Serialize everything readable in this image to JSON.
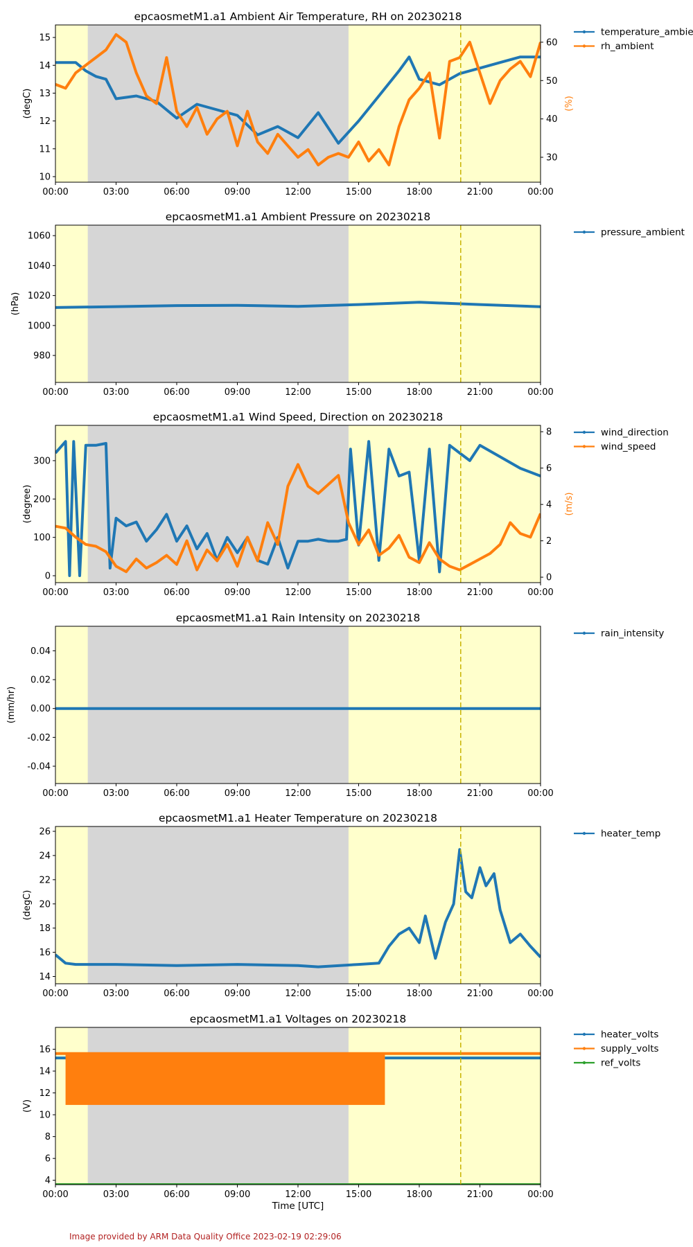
{
  "figure": {
    "xlabel": "Time [UTC]",
    "footer": "Image provided by ARM Data Quality Office 2023-02-19 02:29:06",
    "x_ticks": [
      "00:00",
      "03:00",
      "06:00",
      "09:00",
      "12:00",
      "15:00",
      "18:00",
      "21:00",
      "00:00"
    ],
    "colors": {
      "blue": "#1f77b4",
      "orange": "#ff7f0e",
      "green": "#2ca02c",
      "night": "#d6d6d6",
      "day": "#ffffcc",
      "marker": "#c8b400"
    }
  },
  "chart_data": [
    {
      "type": "line",
      "title": "epcaosmetM1.a1 Ambient Air Temperature, RH on 20230218",
      "ylabel": "(degC)",
      "ylim": [
        9.8,
        15.45
      ],
      "yticks": [
        10,
        11,
        12,
        13,
        14,
        15
      ],
      "ylabel2": "(%)",
      "ylim2": [
        23.5,
        64.5
      ],
      "yticks2": [
        30,
        40,
        50,
        60
      ],
      "legend": [
        "temperature_ambient",
        "rh_ambient"
      ],
      "series": [
        {
          "name": "temperature_ambient",
          "axis": "left",
          "color": "#1f77b4",
          "x": [
            0,
            1,
            1.5,
            2,
            2.5,
            3,
            4,
            5,
            6,
            7,
            8,
            9,
            10,
            11,
            12,
            13,
            14,
            15,
            16,
            17,
            17.5,
            18,
            19,
            20,
            21,
            22,
            23,
            24
          ],
          "y": [
            14.1,
            14.1,
            13.8,
            13.6,
            13.5,
            12.8,
            12.9,
            12.7,
            12.1,
            12.6,
            12.4,
            12.2,
            11.5,
            11.8,
            11.4,
            12.3,
            11.2,
            12.0,
            12.9,
            13.8,
            14.3,
            13.5,
            13.3,
            13.7,
            13.9,
            14.1,
            14.3,
            14.3
          ]
        },
        {
          "name": "rh_ambient",
          "axis": "right",
          "color": "#ff7f0e",
          "x": [
            0,
            0.5,
            1,
            1.5,
            2,
            2.5,
            3,
            3.5,
            4,
            4.5,
            5,
            5.5,
            6,
            6.5,
            7,
            7.5,
            8,
            8.5,
            9,
            9.5,
            10,
            10.5,
            11,
            11.5,
            12,
            12.5,
            13,
            13.5,
            14,
            14.5,
            15,
            15.5,
            16,
            16.5,
            17,
            17.5,
            18,
            18.5,
            19,
            19.5,
            20,
            20.5,
            21,
            21.5,
            22,
            22.5,
            23,
            23.5,
            24
          ],
          "y": [
            49,
            48,
            52,
            54,
            56,
            58,
            62,
            60,
            52,
            46,
            44,
            56,
            42,
            38,
            43,
            36,
            40,
            42,
            33,
            42,
            34,
            31,
            36,
            33,
            30,
            32,
            28,
            30,
            31,
            30,
            34,
            29,
            32,
            28,
            38,
            45,
            48,
            52,
            35,
            55,
            56,
            60,
            52,
            44,
            50,
            53,
            55,
            51,
            60
          ]
        }
      ]
    },
    {
      "type": "line",
      "title": "epcaosmetM1.a1 Ambient Pressure on 20230218",
      "ylabel": "(hPa)",
      "ylim": [
        962,
        1067
      ],
      "yticks": [
        980,
        1000,
        1020,
        1040,
        1060
      ],
      "legend": [
        "pressure_ambient"
      ],
      "series": [
        {
          "name": "pressure_ambient",
          "axis": "left",
          "color": "#1f77b4",
          "x": [
            0,
            3,
            6,
            9,
            12,
            15,
            18,
            21,
            24
          ],
          "y": [
            1012,
            1012.6,
            1013.3,
            1013.5,
            1012.8,
            1014,
            1015.5,
            1014,
            1012.5
          ]
        }
      ]
    },
    {
      "type": "line",
      "title": "epcaosmetM1.a1 Wind Speed, Direction on 20230218",
      "ylabel": "(degree)",
      "ylim": [
        -18,
        392
      ],
      "yticks": [
        0,
        100,
        200,
        300
      ],
      "ylabel2": "(m/s)",
      "ylim2": [
        -0.3,
        8.35
      ],
      "yticks2": [
        0,
        2,
        4,
        6,
        8
      ],
      "legend": [
        "wind_direction",
        "wind_speed"
      ],
      "series": [
        {
          "name": "wind_direction",
          "axis": "left",
          "color": "#1f77b4",
          "x": [
            0,
            0.5,
            0.7,
            0.9,
            1.2,
            1.5,
            2,
            2.5,
            2.7,
            3,
            3.5,
            4,
            4.5,
            5,
            5.5,
            6,
            6.5,
            7,
            7.5,
            8,
            8.5,
            9,
            9.5,
            10,
            10.5,
            11,
            11.5,
            12,
            12.5,
            13,
            13.5,
            14,
            14.4,
            14.6,
            15,
            15.5,
            16,
            16.5,
            17,
            17.5,
            18,
            18.5,
            19,
            19.5,
            20,
            20.5,
            21,
            22,
            23,
            24
          ],
          "y": [
            320,
            350,
            0,
            350,
            0,
            340,
            340,
            345,
            20,
            150,
            130,
            140,
            90,
            120,
            160,
            90,
            130,
            70,
            110,
            40,
            100,
            60,
            100,
            40,
            30,
            100,
            20,
            90,
            90,
            95,
            90,
            90,
            95,
            330,
            80,
            350,
            40,
            330,
            260,
            270,
            40,
            330,
            10,
            340,
            320,
            300,
            340,
            310,
            280,
            260
          ]
        },
        {
          "name": "wind_speed",
          "axis": "right",
          "color": "#ff7f0e",
          "x": [
            0,
            0.5,
            1,
            1.5,
            2,
            2.5,
            3,
            3.5,
            4,
            4.5,
            5,
            5.5,
            6,
            6.5,
            7,
            7.5,
            8,
            8.5,
            9,
            9.5,
            10,
            10.5,
            11,
            11.5,
            12,
            12.5,
            13,
            13.5,
            14,
            14.5,
            15,
            15.5,
            16,
            16.5,
            17,
            17.5,
            18,
            18.5,
            19,
            19.5,
            20,
            20.5,
            21,
            21.5,
            22,
            22.5,
            23,
            23.5,
            24
          ],
          "y": [
            2.8,
            2.7,
            2.2,
            1.8,
            1.7,
            1.4,
            0.6,
            0.3,
            1.0,
            0.5,
            0.8,
            1.2,
            0.7,
            2.0,
            0.4,
            1.5,
            0.9,
            1.8,
            0.6,
            2.2,
            0.9,
            3.0,
            1.8,
            5.0,
            6.2,
            5.0,
            4.6,
            5.1,
            5.6,
            3.0,
            1.8,
            2.6,
            1.2,
            1.6,
            2.3,
            1.1,
            0.8,
            1.9,
            1.0,
            0.6,
            0.4,
            0.7,
            1.0,
            1.3,
            1.8,
            3.0,
            2.4,
            2.2,
            3.5
          ]
        }
      ]
    },
    {
      "type": "line",
      "title": "epcaosmetM1.a1 Rain Intensity on 20230218",
      "ylabel": "(mm/hr)",
      "ylim": [
        -0.052,
        0.057
      ],
      "yticks": [
        -0.04,
        -0.02,
        0.0,
        0.02,
        0.04
      ],
      "tick_decimals": 2,
      "legend": [
        "rain_intensity"
      ],
      "series": [
        {
          "name": "rain_intensity",
          "axis": "left",
          "color": "#1f77b4",
          "x": [
            0,
            24
          ],
          "y": [
            0,
            0
          ]
        }
      ]
    },
    {
      "type": "line",
      "title": "epcaosmetM1.a1 Heater Temperature on 20230218",
      "ylabel": "(degC)",
      "ylim": [
        13.4,
        26.4
      ],
      "yticks": [
        14,
        16,
        18,
        20,
        22,
        24,
        26
      ],
      "legend": [
        "heater_temp"
      ],
      "series": [
        {
          "name": "heater_temp",
          "axis": "left",
          "color": "#1f77b4",
          "x": [
            0,
            0.5,
            1,
            3,
            6,
            9,
            12,
            13,
            15,
            16,
            16.5,
            17,
            17.5,
            18,
            18.3,
            18.8,
            19.3,
            19.7,
            20,
            20.3,
            20.6,
            21,
            21.3,
            21.7,
            22,
            22.5,
            23,
            23.5,
            24
          ],
          "y": [
            15.8,
            15.1,
            15.0,
            15.0,
            14.9,
            15.0,
            14.9,
            14.8,
            15.0,
            15.1,
            16.5,
            17.5,
            18.0,
            16.8,
            19.0,
            15.5,
            18.5,
            20.0,
            24.5,
            21.0,
            20.5,
            23.0,
            21.5,
            22.5,
            19.5,
            16.8,
            17.5,
            16.5,
            15.6
          ]
        }
      ]
    },
    {
      "type": "line",
      "title": "epcaosmetM1.a1 Voltages on 20230218",
      "ylabel": "(V)",
      "ylim": [
        3.6,
        18
      ],
      "yticks": [
        4,
        6,
        8,
        10,
        12,
        14,
        16
      ],
      "xlabel": "Time [UTC]",
      "legend": [
        "heater_volts",
        "supply_volts",
        "ref_volts"
      ],
      "series": [
        {
          "name": "heater_volts",
          "axis": "left",
          "color": "#1f77b4",
          "x": [
            0,
            0.5,
            16.5,
            24
          ],
          "y": [
            15.2,
            15.2,
            15.2,
            15.2
          ]
        },
        {
          "name": "supply_volts",
          "axis": "left",
          "color": "#ff7f0e",
          "x": [
            0,
            0.5,
            16.3,
            16.5,
            24
          ],
          "y": [
            15.6,
            15.6,
            15.6,
            15.6,
            15.6
          ],
          "band": {
            "x0": 0.5,
            "x1": 16.3,
            "low": 10.9,
            "high": 15.6
          }
        },
        {
          "name": "ref_volts",
          "axis": "left",
          "color": "#2ca02c",
          "x": [
            0,
            24
          ],
          "y": [
            3.6,
            3.6
          ]
        }
      ]
    }
  ],
  "shading": {
    "day_color": "#ffffcc",
    "night_color": "#d6d6d6",
    "night_start": 1.6,
    "night_end": 14.5,
    "marker_hour": 20.05
  }
}
